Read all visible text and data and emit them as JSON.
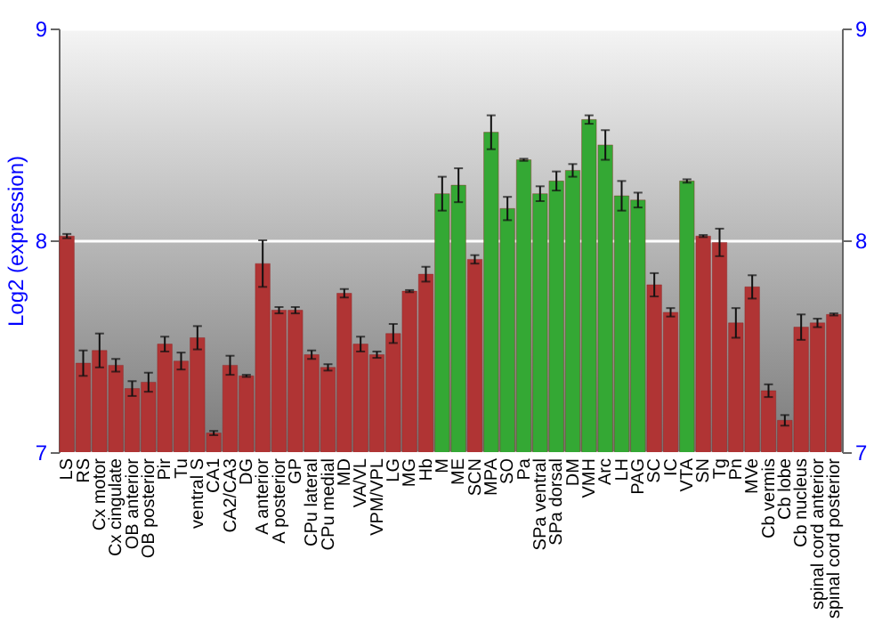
{
  "chart_data": {
    "type": "bar",
    "ylabel": "Log2 (expression)",
    "categories": [
      "LS",
      "RS",
      "Cx motor",
      "Cx cingulate",
      "OB anterior",
      "OB posterior",
      "Pir",
      "Tu",
      "ventral S",
      "CA1",
      "CA2/CA3",
      "DG",
      "A anterior",
      "A posterior",
      "GP",
      "CPu lateral",
      "CPu medial",
      "MD",
      "VA/VL",
      "VPM/VPL",
      "LG",
      "MG",
      "Hb",
      "M",
      "ME",
      "SCN",
      "MPA",
      "SO",
      "Pa",
      "SPa ventral",
      "SPa dorsal",
      "DM",
      "VMH",
      "Arc",
      "LH",
      "PAG",
      "SC",
      "IC",
      "VTA",
      "SN",
      "Tg",
      "Pn",
      "MVe",
      "Cb vermis",
      "Cb lobe",
      "Cb nucleus",
      "spinal cord anterior",
      "spinal cord posterior"
    ],
    "values": [
      8.02,
      7.42,
      7.48,
      7.41,
      7.3,
      7.33,
      7.51,
      7.43,
      7.54,
      7.09,
      7.41,
      7.36,
      7.89,
      7.67,
      7.67,
      7.46,
      7.4,
      7.75,
      7.51,
      7.46,
      7.56,
      7.76,
      7.84,
      8.22,
      8.26,
      7.91,
      8.51,
      8.15,
      8.38,
      8.22,
      8.28,
      8.33,
      8.57,
      8.45,
      8.21,
      8.19,
      7.79,
      7.66,
      8.28,
      8.02,
      7.99,
      7.61,
      7.78,
      7.29,
      7.15,
      7.59,
      7.61,
      7.65
    ],
    "errors": [
      0.01,
      0.06,
      0.08,
      0.03,
      0.035,
      0.045,
      0.035,
      0.04,
      0.055,
      0.01,
      0.045,
      0.005,
      0.11,
      0.015,
      0.015,
      0.02,
      0.015,
      0.02,
      0.035,
      0.015,
      0.045,
      0.005,
      0.035,
      0.08,
      0.08,
      0.02,
      0.08,
      0.055,
      0.005,
      0.035,
      0.045,
      0.03,
      0.02,
      0.07,
      0.07,
      0.035,
      0.055,
      0.02,
      0.008,
      0.005,
      0.065,
      0.07,
      0.055,
      0.03,
      0.025,
      0.06,
      0.02,
      0.005
    ],
    "colors": [
      "#b03434",
      "#b03434",
      "#b03434",
      "#b03434",
      "#b03434",
      "#b03434",
      "#b03434",
      "#b03434",
      "#b03434",
      "#b03434",
      "#b03434",
      "#b03434",
      "#b03434",
      "#b03434",
      "#b03434",
      "#b03434",
      "#b03434",
      "#b03434",
      "#b03434",
      "#b03434",
      "#b03434",
      "#b03434",
      "#b03434",
      "#34a834",
      "#34a834",
      "#b03434",
      "#34a834",
      "#34a834",
      "#34a834",
      "#34a834",
      "#34a834",
      "#34a834",
      "#34a834",
      "#34a834",
      "#34a834",
      "#34a834",
      "#b03434",
      "#b03434",
      "#34a834",
      "#b03434",
      "#b03434",
      "#b03434",
      "#b03434",
      "#b03434",
      "#b03434",
      "#b03434",
      "#b03434",
      "#b03434"
    ],
    "ylim": [
      7,
      9
    ],
    "yticks": [
      7,
      8,
      9
    ],
    "y2lim": [
      7,
      9
    ],
    "y2ticks": [
      7,
      8,
      9
    ],
    "grid": "y"
  }
}
